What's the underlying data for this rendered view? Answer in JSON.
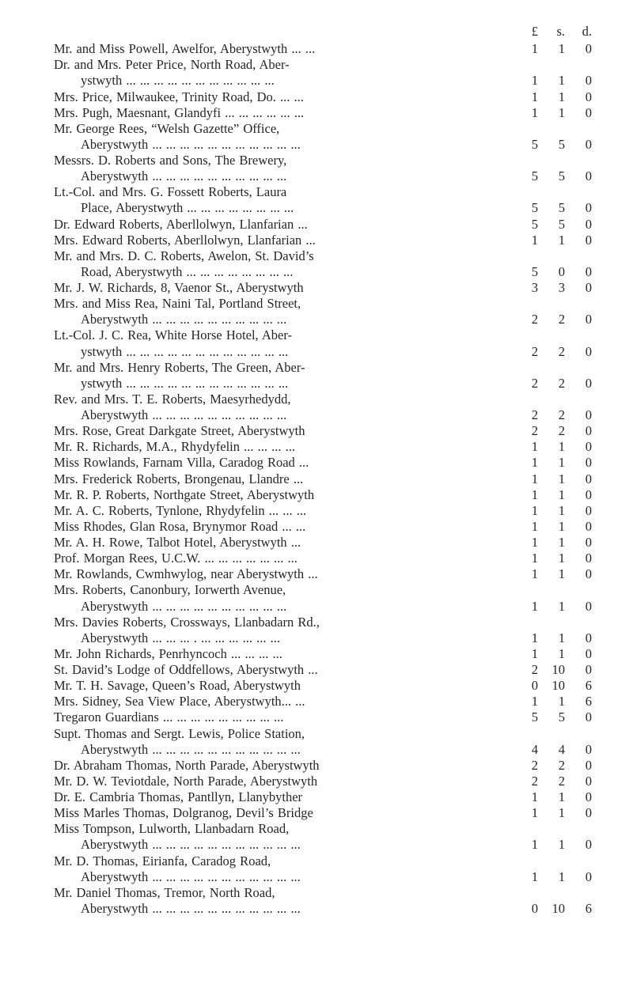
{
  "page": {
    "background_color": "#ffffff",
    "text_color": "#262626",
    "font_family": "Times New Roman",
    "font_size_pt": 12
  },
  "currency_header": {
    "pound": "£",
    "shilling": "s.",
    "pence": "d."
  },
  "entries": [
    {
      "lines": [
        "Mr. and Miss Powell, Awelfor, Aberystwyth ... ..."
      ],
      "amount": [
        "1",
        "1",
        "0"
      ]
    },
    {
      "lines": [
        "Dr. and Mrs. Peter Price, North Road, Aber-",
        "ystwyth ... ... ... ... ... ... ... ... ... ... ..."
      ],
      "amount": [
        "1",
        "1",
        "0"
      ]
    },
    {
      "lines": [
        "Mrs. Price, Milwaukee, Trinity Road, Do. ... ..."
      ],
      "amount": [
        "1",
        "1",
        "0"
      ]
    },
    {
      "lines": [
        "Mrs. Pugh, Maesnant, Glandyfi ... ... ... ... ... ..."
      ],
      "amount": [
        "1",
        "1",
        "0"
      ]
    },
    {
      "lines": [
        "Mr. George Rees, “Welsh Gazette” Office,",
        "Aberystwyth ... ... ... ... ... ... ... ... ... ... ..."
      ],
      "amount": [
        "5",
        "5",
        "0"
      ]
    },
    {
      "lines": [
        "Messrs. D. Roberts and Sons, The Brewery,",
        "Aberystwyth ... ... ... ... ... ... ... ... ... ..."
      ],
      "amount": [
        "5",
        "5",
        "0"
      ]
    },
    {
      "lines": [
        "Lt.-Col. and Mrs. G. Fossett Roberts, Laura",
        "Place, Aberystwyth ... ... ... ... ... ... ... ..."
      ],
      "amount": [
        "5",
        "5",
        "0"
      ]
    },
    {
      "lines": [
        "Dr. Edward Roberts, Aberllolwyn, Llanfarian ..."
      ],
      "amount": [
        "5",
        "5",
        "0"
      ]
    },
    {
      "lines": [
        "Mrs. Edward Roberts, Aberllolwyn, Llanfarian ..."
      ],
      "amount": [
        "1",
        "1",
        "0"
      ]
    },
    {
      "lines": [
        "Mr. and Mrs. D. C. Roberts, Awelon, St. David’s",
        "Road, Aberystwyth ... ... ... ... ... ... ... ..."
      ],
      "amount": [
        "5",
        "0",
        "0"
      ]
    },
    {
      "lines": [
        "Mr. J. W. Richards, 8, Vaenor St., Aberystwyth"
      ],
      "amount": [
        "3",
        "3",
        "0"
      ]
    },
    {
      "lines": [
        "Mrs. and Miss Rea, Naini Tal, Portland Street,",
        "Aberystwyth ... ... ... ... ... ... ... ... ... ..."
      ],
      "amount": [
        "2",
        "2",
        "0"
      ]
    },
    {
      "lines": [
        "Lt.-Col. J. C. Rea, White Horse Hotel, Aber-",
        "ystwyth ... ... ... ... ... ... ... ... ... ... ... ..."
      ],
      "amount": [
        "2",
        "2",
        "0"
      ]
    },
    {
      "lines": [
        "Mr. and Mrs. Henry Roberts, The Green, Aber-",
        "ystwyth ... ... ... ... ... ... ... ... ... ... ... ..."
      ],
      "amount": [
        "2",
        "2",
        "0"
      ]
    },
    {
      "lines": [
        "Rev. and Mrs. T. E. Roberts, Maesyrhedydd,",
        "Aberystwyth ... ... ... ... ... ... ... ... ... ..."
      ],
      "amount": [
        "2",
        "2",
        "0"
      ]
    },
    {
      "lines": [
        "Mrs. Rose, Great Darkgate Street, Aberystwyth"
      ],
      "amount": [
        "2",
        "2",
        "0"
      ]
    },
    {
      "lines": [
        "Mr. R. Richards, M.A., Rhydyfelin ... ... ... ..."
      ],
      "amount": [
        "1",
        "1",
        "0"
      ]
    },
    {
      "lines": [
        "Miss Rowlands, Farnam Villa, Caradog Road ..."
      ],
      "amount": [
        "1",
        "1",
        "0"
      ]
    },
    {
      "lines": [
        "Mrs. Frederick Roberts, Brongenau, Llandre ..."
      ],
      "amount": [
        "1",
        "1",
        "0"
      ]
    },
    {
      "lines": [
        "Mr. R. P. Roberts, Northgate Street, Aberystwyth"
      ],
      "amount": [
        "1",
        "1",
        "0"
      ]
    },
    {
      "lines": [
        "Mr. A. C. Roberts, Tynlone, Rhydyfelin ... ... ..."
      ],
      "amount": [
        "1",
        "1",
        "0"
      ]
    },
    {
      "lines": [
        "Miss Rhodes, Glan Rosa, Brynymor Road ... ..."
      ],
      "amount": [
        "1",
        "1",
        "0"
      ]
    },
    {
      "lines": [
        "Mr. A. H. Rowe, Talbot Hotel, Aberystwyth ..."
      ],
      "amount": [
        "1",
        "1",
        "0"
      ]
    },
    {
      "lines": [
        "Prof. Morgan Rees, U.C.W. ... ... ... ... ... ... ..."
      ],
      "amount": [
        "1",
        "1",
        "0"
      ]
    },
    {
      "lines": [
        "Mr. Rowlands, Cwmhwylog, near Aberystwyth ..."
      ],
      "amount": [
        "1",
        "1",
        "0"
      ]
    },
    {
      "lines": [
        "Mrs. Roberts, Canonbury, Iorwerth Avenue,",
        "Aberystwyth ... ... ... ... ... ... ... ... ... ..."
      ],
      "amount": [
        "1",
        "1",
        "0"
      ]
    },
    {
      "lines": [
        "Mrs. Davies Roberts, Crossways, Llanbadarn Rd.,",
        "Aberystwyth ... ... ... . ... ... ... ... ... ..."
      ],
      "amount": [
        "1",
        "1",
        "0"
      ]
    },
    {
      "lines": [
        "Mr. John Richards, Penrhyncoch ... ... ... ..."
      ],
      "amount": [
        "1",
        "1",
        "0"
      ]
    },
    {
      "lines": [
        "St. David’s Lodge of Oddfellows, Aberystwyth ..."
      ],
      "amount": [
        "2",
        "10",
        "0"
      ]
    },
    {
      "lines": [
        "Mr. T. H. Savage, Queen’s Road, Aberystwyth"
      ],
      "amount": [
        "0",
        "10",
        "6"
      ]
    },
    {
      "lines": [
        "Mrs. Sidney, Sea View Place, Aberystwyth... ..."
      ],
      "amount": [
        "1",
        "1",
        "6"
      ]
    },
    {
      "lines": [
        "Tregaron Guardians ... ... ... ... ... ... ... ... ..."
      ],
      "amount": [
        "5",
        "5",
        "0"
      ]
    },
    {
      "lines": [
        "Supt. Thomas and Sergt. Lewis, Police Station,",
        "Aberystwyth ... ... ... ... ... ... ... ... ... ... ..."
      ],
      "amount": [
        "4",
        "4",
        "0"
      ]
    },
    {
      "lines": [
        "Dr. Abraham Thomas, North Parade, Aberystwyth"
      ],
      "amount": [
        "2",
        "2",
        "0"
      ]
    },
    {
      "lines": [
        "Mr. D. W. Teviotdale, North Parade, Aberystwyth"
      ],
      "amount": [
        "2",
        "2",
        "0"
      ]
    },
    {
      "lines": [
        "Dr. E. Cambria Thomas, Pantllyn, Llanybyther"
      ],
      "amount": [
        "1",
        "1",
        "0"
      ]
    },
    {
      "lines": [
        "Miss Marles Thomas, Dolgranog, Devil’s Bridge"
      ],
      "amount": [
        "1",
        "1",
        "0"
      ]
    },
    {
      "lines": [
        "Miss Tompson, Lulworth, Llanbadarn Road,",
        "Aberystwyth ... ... ... ... ... ... ... ... ... ... ..."
      ],
      "amount": [
        "1",
        "1",
        "0"
      ]
    },
    {
      "lines": [
        "Mr. D. Thomas, Eirianfa, Caradog Road,",
        "Aberystwyth ... ... ... ... ... ... ... ... ... ... ..."
      ],
      "amount": [
        "1",
        "1",
        "0"
      ]
    },
    {
      "lines": [
        "Mr. Daniel Thomas, Tremor, North Road,",
        "Aberystwyth ... ... ... ... ... ... ... ... ... ... ..."
      ],
      "amount": [
        "0",
        "10",
        "6"
      ]
    }
  ]
}
